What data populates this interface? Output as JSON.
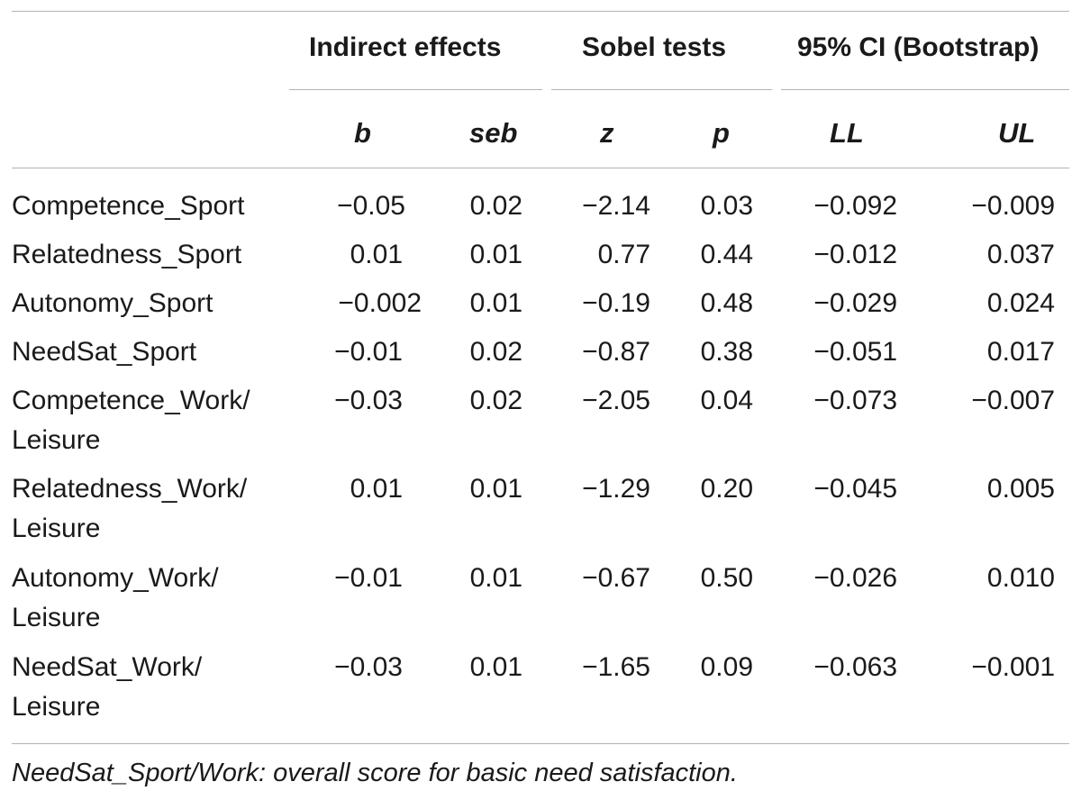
{
  "header": {
    "groups": [
      "Indirect effects",
      "Sobel tests",
      "95% CI (Bootstrap)"
    ],
    "columns": [
      "b",
      "seb",
      "z",
      "p",
      "LL",
      "UL"
    ]
  },
  "rows": [
    {
      "label_lines": [
        "Competence_Sport"
      ],
      "values": [
        "−0.05",
        "0.02",
        "−2.14",
        "0.03",
        "−0.092",
        "−0.009"
      ]
    },
    {
      "label_lines": [
        "Relatedness_Sport"
      ],
      "values": [
        "0.01",
        "0.01",
        "0.77",
        "0.44",
        "−0.012",
        "0.037"
      ]
    },
    {
      "label_lines": [
        "Autonomy_Sport"
      ],
      "values": [
        "−0.002",
        "0.01",
        "−0.19",
        "0.48",
        "−0.029",
        "0.024"
      ]
    },
    {
      "label_lines": [
        "NeedSat_Sport"
      ],
      "values": [
        "−0.01",
        "0.02",
        "−0.87",
        "0.38",
        "−0.051",
        "0.017"
      ]
    },
    {
      "label_lines": [
        "Competence_Work/",
        "Leisure"
      ],
      "values": [
        "−0.03",
        "0.02",
        "−2.05",
        "0.04",
        "−0.073",
        "−0.007"
      ]
    },
    {
      "label_lines": [
        "Relatedness_Work/",
        "Leisure"
      ],
      "values": [
        "0.01",
        "0.01",
        "−1.29",
        "0.20",
        "−0.045",
        "0.005"
      ]
    },
    {
      "label_lines": [
        "Autonomy_Work/",
        "Leisure"
      ],
      "values": [
        "−0.01",
        "0.01",
        "−0.67",
        "0.50",
        "−0.026",
        "0.010"
      ]
    },
    {
      "label_lines": [
        "NeedSat_Work/",
        "Leisure"
      ],
      "values": [
        "−0.03",
        "0.01",
        "−1.65",
        "0.09",
        "−0.063",
        "−0.001"
      ]
    }
  ],
  "footnote": "NeedSat_Sport/Work: overall score for basic need satisfaction."
}
